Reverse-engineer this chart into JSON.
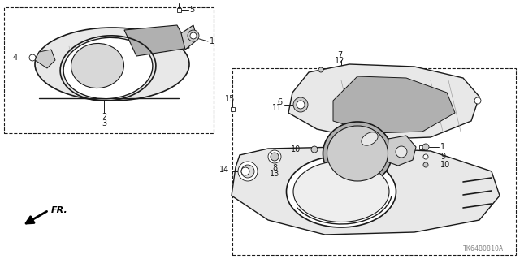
{
  "bg_color": "#ffffff",
  "line_color": "#1a1a1a",
  "text_color": "#1a1a1a",
  "gray_fill": "#cccccc",
  "light_gray": "#e8e8e8",
  "mid_gray": "#b0b0b0",
  "dark_gray": "#888888",
  "watermark": "TK64B0810A",
  "fs": 7,
  "lw": 0.7
}
